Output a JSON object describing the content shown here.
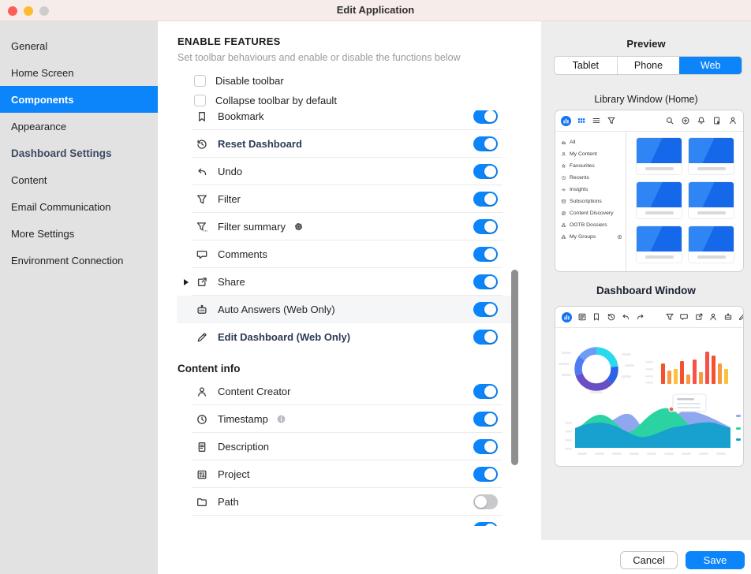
{
  "colors": {
    "accent": "#0c84fa",
    "library_blue": "#1273f0"
  },
  "titlebar": {
    "title": "Edit Application"
  },
  "sidebar": {
    "items": [
      {
        "label": "General",
        "type": "item"
      },
      {
        "label": "Home Screen",
        "type": "item"
      },
      {
        "label": "Components",
        "type": "item",
        "selected": true
      },
      {
        "label": "Appearance",
        "type": "item"
      },
      {
        "label": "Dashboard Settings",
        "type": "header"
      },
      {
        "label": "Content",
        "type": "item"
      },
      {
        "label": "Email Communication",
        "type": "item"
      },
      {
        "label": "More Settings",
        "type": "item"
      },
      {
        "label": "Environment Connection",
        "type": "item"
      }
    ]
  },
  "main": {
    "section_title": "ENABLE FEATURES",
    "section_subtitle": "Set toolbar behaviours and enable or disable the functions below",
    "checkboxes": [
      {
        "label": "Disable toolbar",
        "checked": false
      },
      {
        "label": "Collapse toolbar by default",
        "checked": false
      }
    ],
    "feature_rows": [
      {
        "icon": "bookmark-icon",
        "label": "Bookmark",
        "on": true,
        "divider": true
      },
      {
        "icon": "history-icon",
        "label": "Reset Dashboard",
        "on": true,
        "emphasis": true,
        "divider": true
      },
      {
        "icon": "undo-icon",
        "label": "Undo",
        "on": true,
        "divider": true
      },
      {
        "icon": "filter-icon",
        "label": "Filter",
        "on": true,
        "divider": true
      },
      {
        "icon": "filter-summary-icon",
        "label": "Filter summary",
        "on": true,
        "gear": true,
        "divider": true
      },
      {
        "icon": "comment-icon",
        "label": "Comments",
        "on": true,
        "divider": true
      },
      {
        "icon": "share-icon",
        "label": "Share",
        "on": true,
        "disclosure": true,
        "divider": true
      },
      {
        "icon": "robot-icon",
        "label": "Auto Answers (Web Only)",
        "on": true,
        "highlighted": true,
        "divider": false
      },
      {
        "icon": "pencil-icon",
        "label": "Edit Dashboard (Web Only)",
        "on": true,
        "emphasis": true,
        "divider": false
      }
    ],
    "content_info_title": "Content info",
    "content_info_rows": [
      {
        "icon": "person-icon",
        "label": "Content Creator",
        "on": true,
        "divider": true
      },
      {
        "icon": "clock-icon",
        "label": "Timestamp",
        "on": true,
        "info": true,
        "divider": true
      },
      {
        "icon": "document-icon",
        "label": "Description",
        "on": true,
        "divider": true
      },
      {
        "icon": "project-icon",
        "label": "Project",
        "on": true,
        "divider": true
      },
      {
        "icon": "folder-icon",
        "label": "Path",
        "on": false,
        "divider": true
      },
      {
        "icon": "",
        "label": "",
        "on": true,
        "partial": true,
        "divider": false
      }
    ]
  },
  "preview": {
    "title": "Preview",
    "device_tabs": [
      {
        "label": "Tablet",
        "selected": false
      },
      {
        "label": "Phone",
        "selected": false
      },
      {
        "label": "Web",
        "selected": true
      }
    ],
    "library_window": {
      "title": "Library Window (Home)",
      "toolbar_left_icons": [
        "logo-icon",
        "grid-view-icon",
        "list-view-icon",
        "filter-icon"
      ],
      "toolbar_right_icons": [
        "search-icon",
        "add-icon",
        "notifications-icon",
        "export-icon",
        "account-icon"
      ],
      "sidebar_items": [
        {
          "icon": "bar-chart-icon",
          "label": "All"
        },
        {
          "icon": "person-icon",
          "label": "My Content"
        },
        {
          "icon": "star-icon",
          "label": "Favourites"
        },
        {
          "icon": "clock-icon",
          "label": "Recents"
        },
        {
          "icon": "pulse-icon",
          "label": "Insights"
        },
        {
          "icon": "mail-icon",
          "label": "Subscriptions"
        },
        {
          "icon": "compass-icon",
          "label": "Content Discovery"
        },
        {
          "icon": "network-icon",
          "label": "OOTB Dossiers"
        },
        {
          "icon": "network-icon",
          "label": "My Groups",
          "trailing": "add-small-icon"
        }
      ],
      "grid_card_count": 6
    },
    "dashboard_window": {
      "title": "Dashboard Window",
      "toolbar_icons": [
        "logo-icon",
        "toc-icon",
        "bookmark-icon",
        "history-icon",
        "undo-icon",
        "redo-icon",
        "filter-icon",
        "comment-icon",
        "share-icon",
        "person-icon",
        "robot-icon",
        "pencil-icon"
      ],
      "chart_data": [
        {
          "type": "pie",
          "title": "donut-widget",
          "segments": [
            {
              "color": "#2bd9ee",
              "value": 23
            },
            {
              "color": "#2e63e8",
              "value": 14
            },
            {
              "color": "#6a4ec5",
              "value": 33
            },
            {
              "color": "#4d7df0",
              "value": 15
            },
            {
              "color": "#6f9cf4",
              "value": 15
            }
          ]
        },
        {
          "type": "bar",
          "title": "bar-widget",
          "values": [
            26,
            17,
            19,
            29,
            12,
            31,
            15,
            41,
            36,
            26,
            19
          ],
          "colors": [
            "#f4512c",
            "#f89b40",
            "#fbc23d",
            "#f4512c",
            "#f89b40",
            "#f8514b",
            "#f89b40",
            "#f8514b",
            "#f4512c",
            "#f89b40",
            "#fbc23d"
          ]
        },
        {
          "type": "area",
          "title": "area-widget",
          "series_colors": [
            "#8fa7ee",
            "#2bd3a2",
            "#18a0ce"
          ]
        }
      ]
    }
  },
  "footer": {
    "cancel_label": "Cancel",
    "save_label": "Save"
  }
}
